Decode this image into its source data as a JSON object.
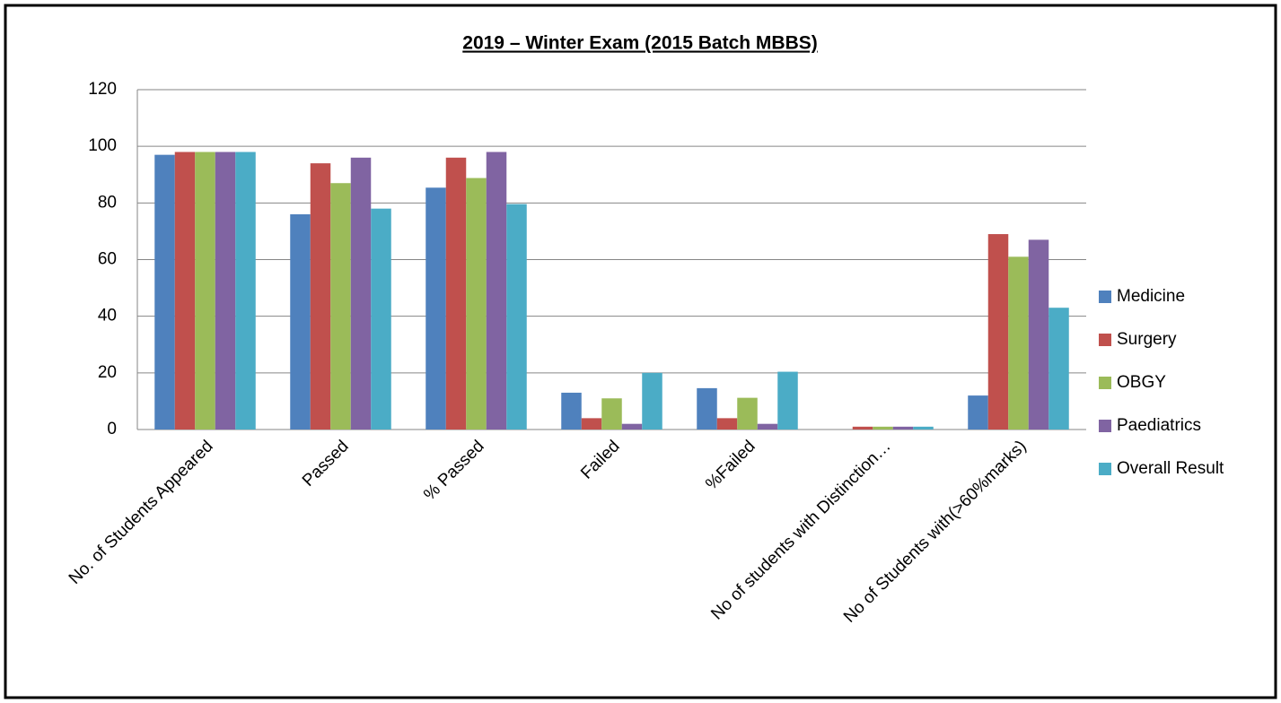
{
  "chart_data": {
    "type": "bar",
    "title": "2019 – Winter Exam (2015 Batch MBBS)",
    "categories": [
      "No. of Students Appeared",
      "Passed",
      "% Passed",
      "Failed",
      "%Failed",
      "No of students with Distinction…",
      "No of Students with(>60%marks)"
    ],
    "series": [
      {
        "name": "Medicine",
        "color": "#4f81bd",
        "values": [
          97,
          76,
          85.4,
          13,
          14.6,
          0,
          12
        ]
      },
      {
        "name": "Surgery",
        "color": "#c0504d",
        "values": [
          98,
          94,
          96,
          4,
          4,
          1,
          69
        ]
      },
      {
        "name": "OBGY",
        "color": "#9bbb59",
        "values": [
          98,
          87,
          88.8,
          11,
          11.2,
          1,
          61
        ]
      },
      {
        "name": "Paediatrics",
        "color": "#8064a2",
        "values": [
          98,
          96,
          98,
          2,
          2,
          1,
          67
        ]
      },
      {
        "name": "Overall Result",
        "color": "#4bacc6",
        "values": [
          98,
          78,
          79.6,
          20,
          20.4,
          1,
          43
        ]
      }
    ],
    "ylim": [
      0,
      120
    ],
    "yticks": [
      0,
      20,
      40,
      60,
      80,
      100,
      120
    ],
    "grid": true,
    "legend": "right"
  }
}
